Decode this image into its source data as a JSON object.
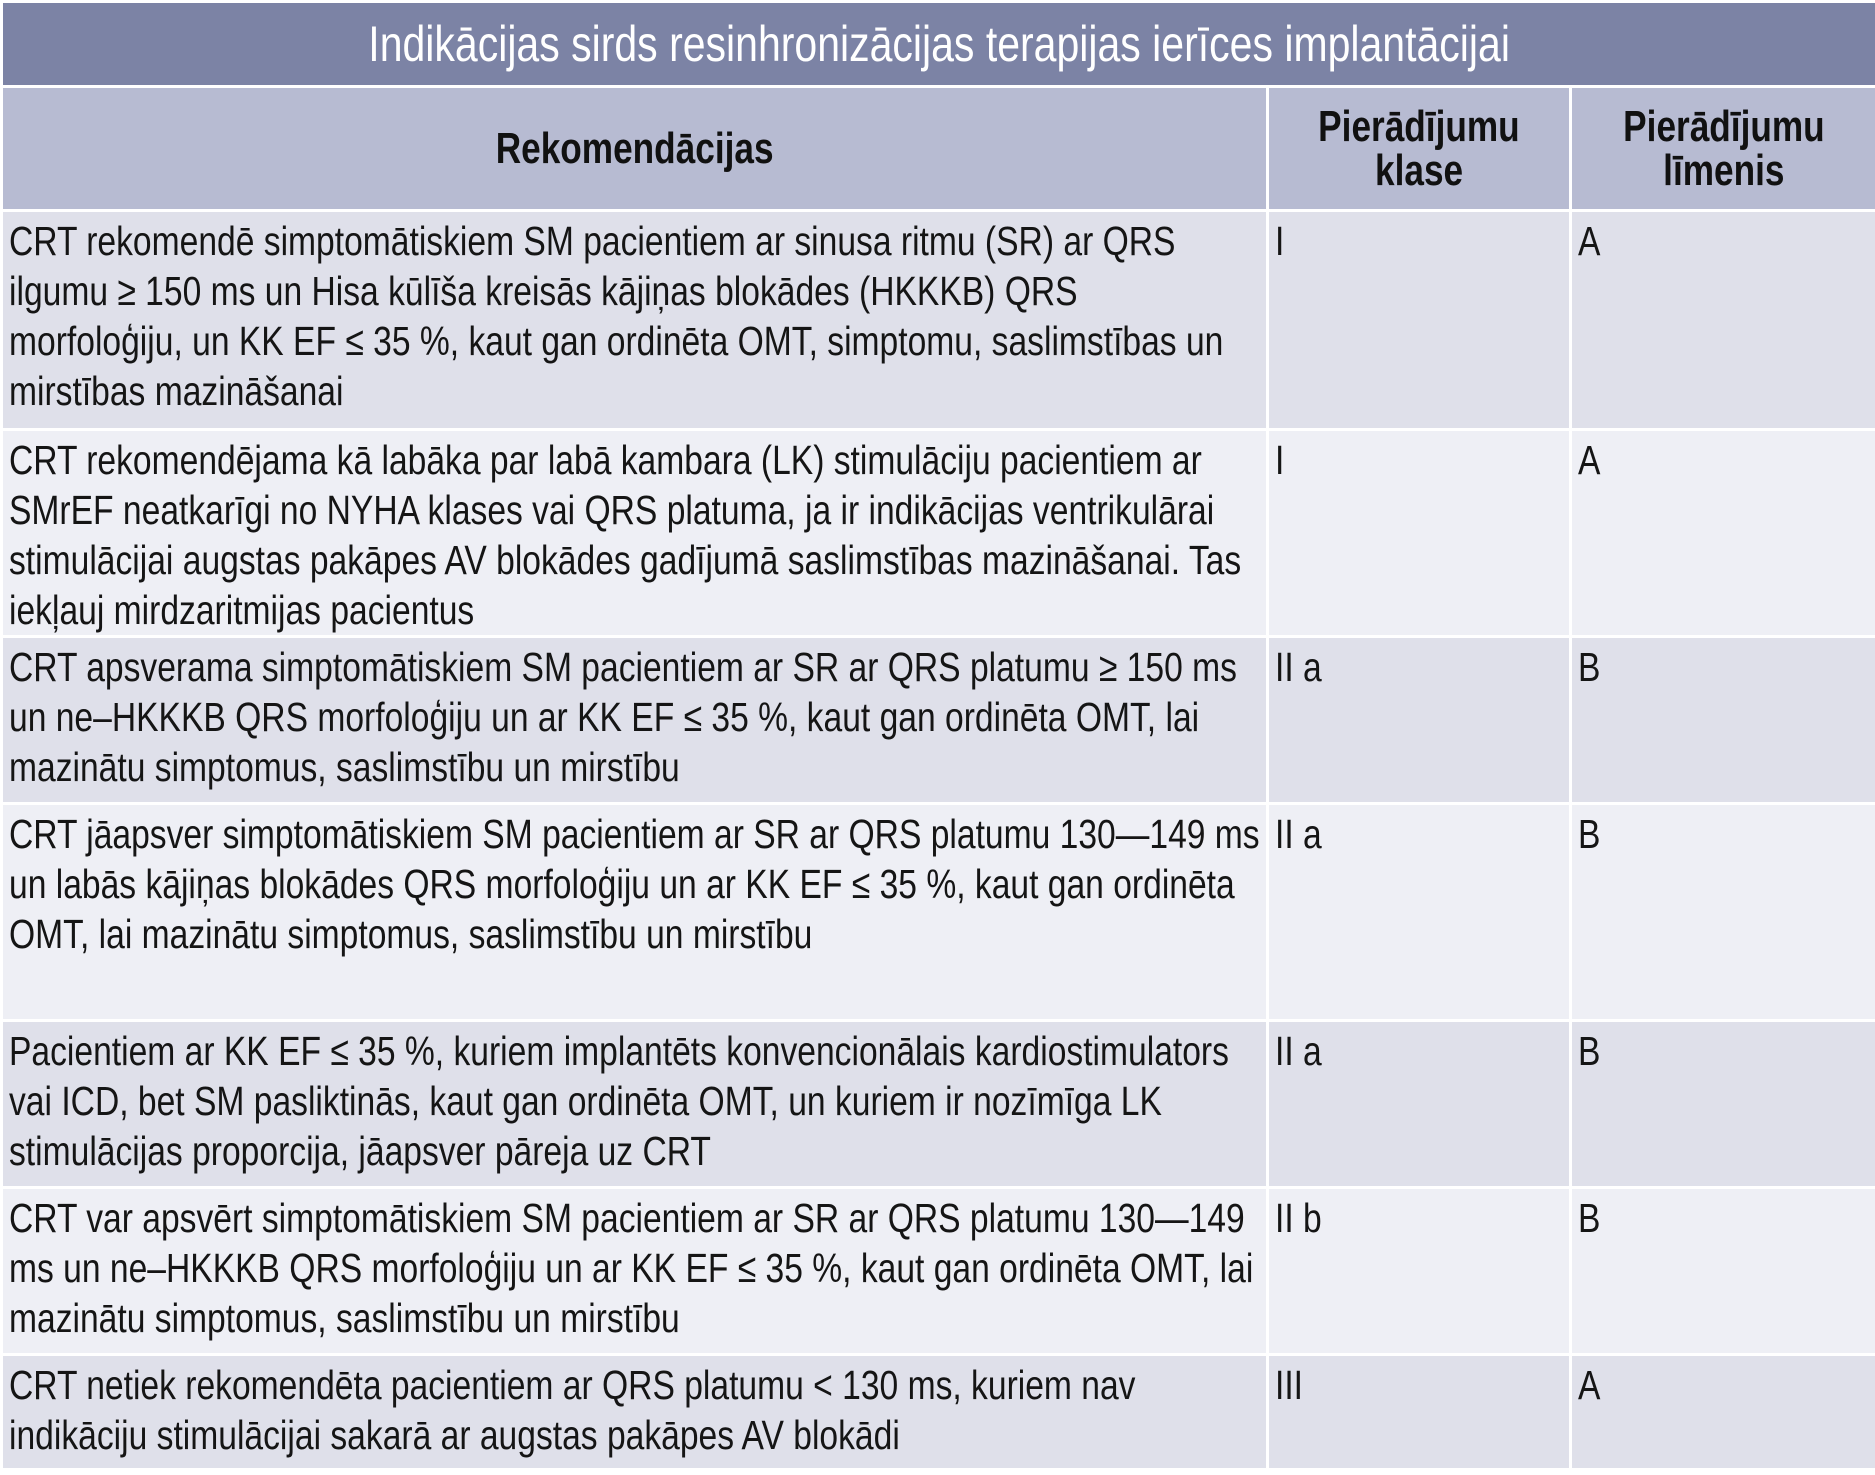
{
  "title": "Indikācijas sirds resinhronizācijas terapijas ierīces implantācijai",
  "headers": {
    "recommendations": "Rekomendācijas",
    "class_line1": "Pierādījumu",
    "class_line2": "klase",
    "level_line1": "Pierādījumu",
    "level_line2": "līmenis"
  },
  "rows": [
    {
      "text": "CRT rekomendē simptomātiskiem SM pacientiem ar sinusa ritmu (SR) ar QRS ilgumu ≥ 150 ms un Hisa kūlīša kreisās kājiņas blokādes (HKKKB) QRS morfoloģiju, un KK EF ≤ 35 %, kaut gan ordinēta OMT, simptomu, saslimstības un mirstības mazināšanai",
      "class": "I",
      "level": "A"
    },
    {
      "text": "CRT rekomendējama kā labāka par labā kambara (LK) stimulāciju pacientiem ar SMrEF neatkarīgi no NYHA klases vai QRS platuma, ja ir indikācijas ventrikulārai stimulācijai augstas pakāpes AV blokādes gadījumā saslimstības mazināšanai. Tas iekļauj mirdzaritmijas pacientus",
      "class": "I",
      "level": "A"
    },
    {
      "text": "CRT apsverama simptomātiskiem SM pacientiem ar SR ar QRS platumu ≥ 150 ms un ne–HKKKB QRS morfoloģiju un ar KK EF ≤ 35 %, kaut gan ordinēta OMT, lai mazinātu simptomus, saslimstību un mirstību",
      "class": "II a",
      "level": "B"
    },
    {
      "text": "CRT jāapsver simptomātiskiem SM pacientiem ar SR ar QRS platumu 130—149 ms un labās kājiņas blokādes QRS morfoloģiju un ar KK EF ≤ 35 %, kaut gan ordinēta OMT, lai mazinātu simptomus, saslimstību un mirstību",
      "class": "II a",
      "level": "B"
    },
    {
      "text": "Pacientiem ar KK EF ≤ 35 %, kuriem implantēts konvencionālais kardiostimulators vai ICD, bet SM pasliktinās, kaut gan ordinēta OMT, un kuriem ir nozīmīga LK stimulācijas proporcija, jāapsver pāreja uz CRT",
      "class": "II a",
      "level": "B"
    },
    {
      "text": "CRT var apsvērt simptomātiskiem SM pacientiem ar SR ar QRS platumu 130—149 ms un ne–HKKKB QRS morfoloģiju un ar KK EF ≤ 35 %, kaut gan ordinēta OMT, lai mazinātu simptomus, saslimstību un mirstību",
      "class": "II b",
      "level": "B"
    },
    {
      "text": "CRT netiek rekomendēta pacientiem ar QRS platumu < 130 ms, kuriem nav indikāciju stimulācijai sakarā ar augstas pakāpes AV blokādi",
      "class": "III",
      "level": "A"
    }
  ]
}
